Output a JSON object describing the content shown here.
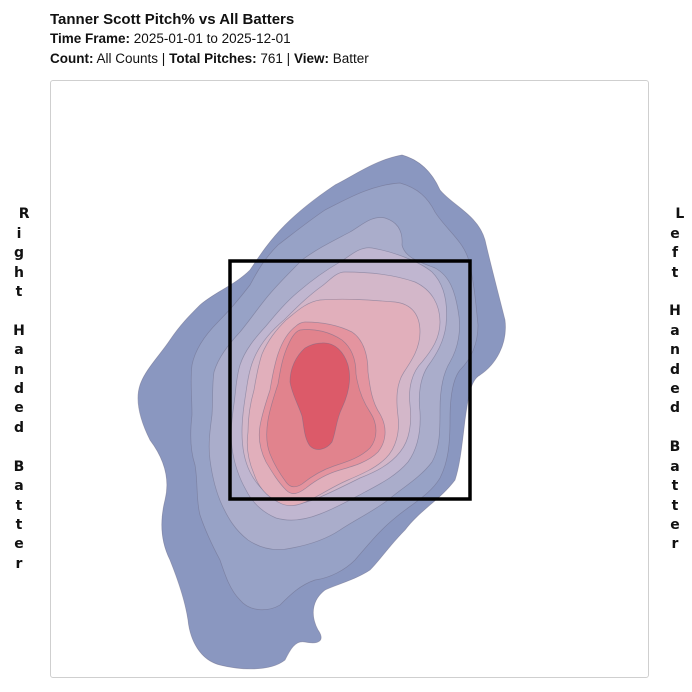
{
  "header": {
    "title": "Tanner Scott Pitch% vs All Batters",
    "time_frame_label": "Time Frame:",
    "time_frame_value": "2025-01-01 to 2025-12-01",
    "count_label": "Count:",
    "count_value": "All Counts",
    "total_pitches_label": "Total Pitches:",
    "total_pitches_value": "761",
    "view_label": "View:",
    "view_value": "Batter",
    "separator": "|"
  },
  "side_labels": {
    "left": "Right Handed Batter",
    "right": "Left Handed Batter"
  },
  "chart_data": {
    "type": "heatmap",
    "description_kind": "density contour of pitch locations",
    "strike_zone": {
      "drawn": true,
      "color": "#000000"
    },
    "levels": [
      {
        "level": 1,
        "color": "#8a97c0"
      },
      {
        "level": 2,
        "color": "#97a2c6"
      },
      {
        "level": 3,
        "color": "#aaadcb"
      },
      {
        "level": 4,
        "color": "#c0b6d0"
      },
      {
        "level": 5,
        "color": "#d3b7c9"
      },
      {
        "level": 6,
        "color": "#e1afbb"
      },
      {
        "level": 7,
        "color": "#e4949f"
      },
      {
        "level": 8,
        "color": "#e1838d"
      },
      {
        "level": 9,
        "color": "#dc5a69"
      }
    ],
    "contour_line_color": "#6e6e8a",
    "total_pitches": 761,
    "grid": false,
    "legend": "none"
  }
}
